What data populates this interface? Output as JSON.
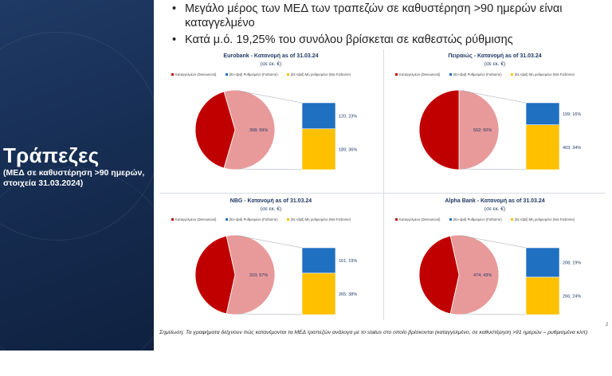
{
  "sidebar": {
    "title": "Τράπεζες",
    "subtitle": "(ΜΕΔ σε καθυστέρηση >90 ημερών, στοιχεία 31.03.2024)"
  },
  "bullets": [
    "Μεγάλο μέρος των ΜΕΔ των τραπεζών σε καθυστέρηση >90 ημερών είναι καταγγελμένο",
    "Κατά μ.ό. 19,25% του συνόλου βρίσκεται σε καθεστώς ρύθμισης"
  ],
  "footnote": "Σημείωση: Τα γραφήματα δείχνουν πώς κατανέμονται τα ΜΕΔ τραπεζών ανάλογα με το status στο οποίο βρίσκονται (καταγγελμένο, σε καθυστέρηση >91 ημερών – ρυθμισμένα κλπ)",
  "page_number": "2",
  "colors": {
    "denounced": "#c00000",
    "pie_rest": "#e89a9a",
    "forborne": "#1f70c1",
    "non_forborne": "#ffc000"
  },
  "legend_labels": [
    "Καταγγελμένο (Denounced)",
    "(91+dpd) Ρυθμισμένο (Forborne)",
    "(91+dpd) Μη ρυθμισμένο (Not Forborne)"
  ],
  "chart_data": [
    {
      "type": "pie",
      "title": "Eurobank - Κατανομή as of 31.03.24",
      "unit": "(σε εκ. €)",
      "pie_label": "308; 59%",
      "bar_labels": [
        "120; 23%",
        "189; 36%"
      ],
      "forborne_share": 0.39,
      "denounced_share": 0.41
    },
    {
      "type": "pie",
      "title": "Πειραιώς - Κατανομή as of 31.03.24",
      "unit": "(σε εκ. €)",
      "pie_label": "592; 50%",
      "bar_labels": [
        "199; 16%",
        "403; 34%"
      ],
      "forborne_share": 0.33,
      "denounced_share": 0.5
    },
    {
      "type": "pie",
      "title": "NBG - Κατανομή as of 31.03.24",
      "unit": "(σε εκ. €)",
      "pie_label": "310; 57%",
      "bar_labels": [
        "161; 19%",
        "265; 38%"
      ],
      "forborne_share": 0.38,
      "denounced_share": 0.43
    },
    {
      "type": "pie",
      "title": "Alpha Bank - Κατανομή as of 31.03.24",
      "unit": "(σε εκ. €)",
      "pie_label": "474; 43%",
      "bar_labels": [
        "208; 19%",
        "266; 24%"
      ],
      "forborne_share": 0.44,
      "denounced_share": 0.43
    }
  ]
}
